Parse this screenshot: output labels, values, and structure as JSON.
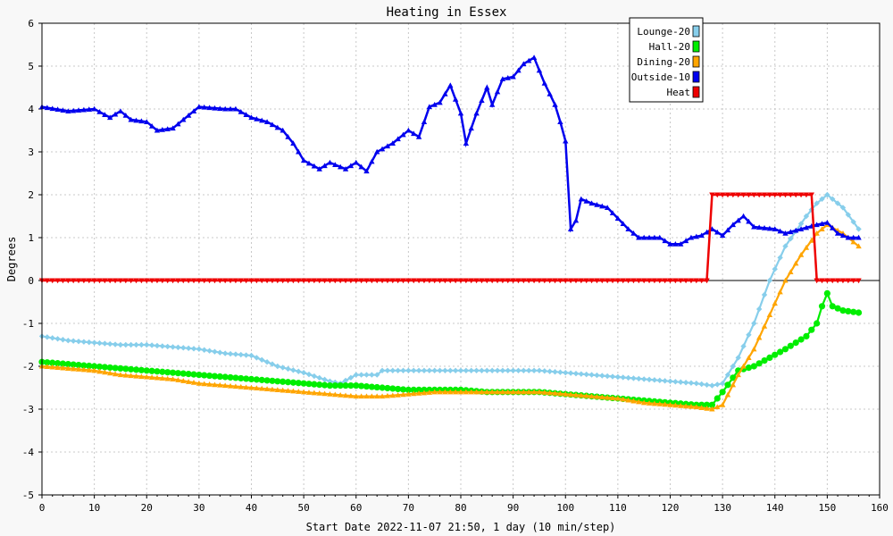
{
  "chart_data": {
    "type": "line",
    "title": "Heating in Essex",
    "xlabel": "Start Date 2022-11-07 21:50, 1 day (10 min/step)",
    "ylabel": "Degrees",
    "xlim": [
      0,
      160
    ],
    "ylim": [
      -5,
      6
    ],
    "x_ticks": [
      0,
      10,
      20,
      30,
      40,
      50,
      60,
      70,
      80,
      90,
      100,
      110,
      120,
      130,
      140,
      150,
      160
    ],
    "y_ticks": [
      -5,
      -4,
      -3,
      -2,
      -1,
      0,
      1,
      2,
      3,
      4,
      5,
      6
    ],
    "grid": true,
    "legend_position": "top-right",
    "series": [
      {
        "name": "Lounge-20",
        "color": "#87ceeb",
        "marker": "diamond",
        "points": [
          [
            0,
            -1.3
          ],
          [
            5,
            -1.4
          ],
          [
            10,
            -1.45
          ],
          [
            15,
            -1.5
          ],
          [
            20,
            -1.5
          ],
          [
            25,
            -1.55
          ],
          [
            30,
            -1.6
          ],
          [
            35,
            -1.7
          ],
          [
            40,
            -1.75
          ],
          [
            45,
            -2.0
          ],
          [
            50,
            -2.15
          ],
          [
            55,
            -2.35
          ],
          [
            57,
            -2.4
          ],
          [
            60,
            -2.2
          ],
          [
            64,
            -2.2
          ],
          [
            65,
            -2.1
          ],
          [
            70,
            -2.1
          ],
          [
            75,
            -2.1
          ],
          [
            80,
            -2.1
          ],
          [
            85,
            -2.1
          ],
          [
            90,
            -2.1
          ],
          [
            95,
            -2.1
          ],
          [
            100,
            -2.15
          ],
          [
            105,
            -2.2
          ],
          [
            110,
            -2.25
          ],
          [
            115,
            -2.3
          ],
          [
            120,
            -2.35
          ],
          [
            125,
            -2.4
          ],
          [
            128,
            -2.45
          ],
          [
            130,
            -2.4
          ],
          [
            133,
            -1.8
          ],
          [
            136,
            -1.0
          ],
          [
            139,
            0.0
          ],
          [
            142,
            0.8
          ],
          [
            146,
            1.5
          ],
          [
            148,
            1.8
          ],
          [
            150,
            2.0
          ],
          [
            153,
            1.7
          ],
          [
            156,
            1.2
          ]
        ]
      },
      {
        "name": "Hall-20",
        "color": "#00ee00",
        "marker": "circle",
        "points": [
          [
            0,
            -1.9
          ],
          [
            5,
            -1.95
          ],
          [
            10,
            -2.0
          ],
          [
            15,
            -2.05
          ],
          [
            20,
            -2.1
          ],
          [
            25,
            -2.15
          ],
          [
            30,
            -2.2
          ],
          [
            35,
            -2.25
          ],
          [
            40,
            -2.3
          ],
          [
            45,
            -2.35
          ],
          [
            50,
            -2.4
          ],
          [
            55,
            -2.45
          ],
          [
            60,
            -2.45
          ],
          [
            65,
            -2.5
          ],
          [
            70,
            -2.55
          ],
          [
            75,
            -2.55
          ],
          [
            80,
            -2.55
          ],
          [
            85,
            -2.6
          ],
          [
            90,
            -2.6
          ],
          [
            95,
            -2.6
          ],
          [
            100,
            -2.65
          ],
          [
            105,
            -2.7
          ],
          [
            110,
            -2.75
          ],
          [
            115,
            -2.8
          ],
          [
            120,
            -2.85
          ],
          [
            125,
            -2.9
          ],
          [
            128,
            -2.9
          ],
          [
            130,
            -2.6
          ],
          [
            133,
            -2.1
          ],
          [
            136,
            -2.0
          ],
          [
            139,
            -1.8
          ],
          [
            142,
            -1.6
          ],
          [
            146,
            -1.3
          ],
          [
            148,
            -1.0
          ],
          [
            149,
            -0.6
          ],
          [
            150,
            -0.3
          ],
          [
            151,
            -0.6
          ],
          [
            153,
            -0.7
          ],
          [
            156,
            -0.75
          ]
        ]
      },
      {
        "name": "Dining-20",
        "color": "#ffa500",
        "marker": "triangle",
        "points": [
          [
            0,
            -2.0
          ],
          [
            5,
            -2.05
          ],
          [
            10,
            -2.1
          ],
          [
            15,
            -2.2
          ],
          [
            20,
            -2.25
          ],
          [
            25,
            -2.3
          ],
          [
            30,
            -2.4
          ],
          [
            35,
            -2.45
          ],
          [
            40,
            -2.5
          ],
          [
            45,
            -2.55
          ],
          [
            50,
            -2.6
          ],
          [
            55,
            -2.65
          ],
          [
            60,
            -2.7
          ],
          [
            65,
            -2.7
          ],
          [
            70,
            -2.65
          ],
          [
            75,
            -2.6
          ],
          [
            80,
            -2.6
          ],
          [
            85,
            -2.6
          ],
          [
            90,
            -2.6
          ],
          [
            95,
            -2.6
          ],
          [
            100,
            -2.65
          ],
          [
            105,
            -2.7
          ],
          [
            110,
            -2.75
          ],
          [
            115,
            -2.85
          ],
          [
            120,
            -2.9
          ],
          [
            125,
            -2.95
          ],
          [
            128,
            -3.0
          ],
          [
            130,
            -2.9
          ],
          [
            133,
            -2.2
          ],
          [
            136,
            -1.6
          ],
          [
            139,
            -0.8
          ],
          [
            142,
            0.0
          ],
          [
            145,
            0.6
          ],
          [
            148,
            1.1
          ],
          [
            150,
            1.3
          ],
          [
            153,
            1.1
          ],
          [
            156,
            0.8
          ]
        ]
      },
      {
        "name": "Outside-10",
        "color": "#0000ee",
        "marker": "triangle",
        "points": [
          [
            0,
            4.05
          ],
          [
            5,
            3.95
          ],
          [
            10,
            4.0
          ],
          [
            13,
            3.8
          ],
          [
            15,
            3.95
          ],
          [
            17,
            3.75
          ],
          [
            20,
            3.7
          ],
          [
            22,
            3.5
          ],
          [
            25,
            3.55
          ],
          [
            30,
            4.05
          ],
          [
            35,
            4.0
          ],
          [
            37,
            4.0
          ],
          [
            40,
            3.8
          ],
          [
            43,
            3.7
          ],
          [
            46,
            3.5
          ],
          [
            48,
            3.2
          ],
          [
            50,
            2.8
          ],
          [
            53,
            2.6
          ],
          [
            55,
            2.75
          ],
          [
            58,
            2.6
          ],
          [
            60,
            2.75
          ],
          [
            62,
            2.55
          ],
          [
            64,
            3.0
          ],
          [
            67,
            3.2
          ],
          [
            70,
            3.5
          ],
          [
            72,
            3.35
          ],
          [
            74,
            4.05
          ],
          [
            76,
            4.15
          ],
          [
            78,
            4.55
          ],
          [
            80,
            3.9
          ],
          [
            81,
            3.2
          ],
          [
            83,
            3.9
          ],
          [
            85,
            4.5
          ],
          [
            86,
            4.1
          ],
          [
            88,
            4.7
          ],
          [
            90,
            4.75
          ],
          [
            92,
            5.05
          ],
          [
            94,
            5.2
          ],
          [
            96,
            4.6
          ],
          [
            98,
            4.1
          ],
          [
            99,
            3.7
          ],
          [
            100,
            3.25
          ],
          [
            101,
            1.2
          ],
          [
            102,
            1.4
          ],
          [
            103,
            1.9
          ],
          [
            105,
            1.8
          ],
          [
            108,
            1.7
          ],
          [
            110,
            1.45
          ],
          [
            112,
            1.2
          ],
          [
            114,
            1.0
          ],
          [
            118,
            1.0
          ],
          [
            120,
            0.85
          ],
          [
            122,
            0.85
          ],
          [
            124,
            1.0
          ],
          [
            126,
            1.05
          ],
          [
            128,
            1.2
          ],
          [
            130,
            1.05
          ],
          [
            132,
            1.3
          ],
          [
            134,
            1.5
          ],
          [
            136,
            1.25
          ],
          [
            140,
            1.2
          ],
          [
            142,
            1.1
          ],
          [
            145,
            1.2
          ],
          [
            148,
            1.3
          ],
          [
            150,
            1.35
          ],
          [
            152,
            1.1
          ],
          [
            154,
            1.0
          ],
          [
            156,
            1.0
          ]
        ]
      },
      {
        "name": "Heat",
        "color": "#ee0000",
        "marker": "triangle-down",
        "points": [
          [
            0,
            0
          ],
          [
            127,
            0
          ],
          [
            128,
            2
          ],
          [
            147,
            2
          ],
          [
            148,
            0
          ],
          [
            156,
            0
          ]
        ]
      }
    ]
  }
}
